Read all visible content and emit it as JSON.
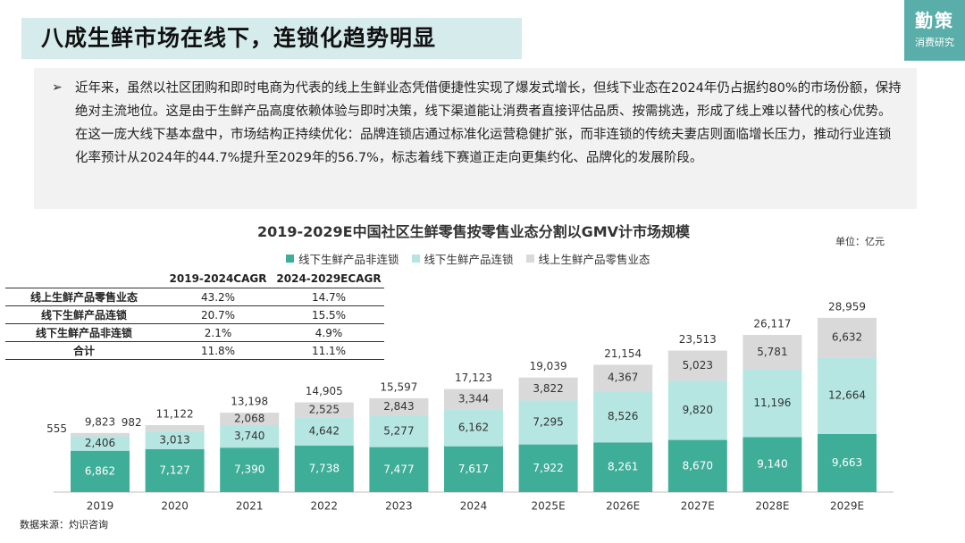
{
  "header": {
    "title": "八成生鲜市场在线下，连锁化趋势明显",
    "brand_main": "勤策",
    "brand_sub": "消费研究"
  },
  "intro": {
    "bullet": "➢",
    "text": "近年来，虽然以社区团购和即时电商为代表的线上生鲜业态凭借便捷性实现了爆发式增长，但线下业态在2024年仍占据约80%的市场份额，保持绝对主流地位。这是由于生鲜产品高度依赖体验与即时决策，线下渠道能让消费者直接评估品质、按需挑选，形成了线上难以替代的核心优势。在这一庞大线下基本盘中，市场结构正持续优化：品牌连锁店通过标准化运营稳健扩张，而非连锁的传统夫妻店则面临增长压力，推动行业连锁化率预计从2024年的44.7%提升至2029年的56.7%，标志着线下赛道正走向更集约化、品牌化的发展阶段。"
  },
  "cagr_table": {
    "headers": [
      "",
      "2019-2024CAGR",
      "2024-2029ECAGR"
    ],
    "rows": [
      [
        "线上生鲜产品零售业态",
        "43.2%",
        "14.7%"
      ],
      [
        "线下生鲜产品连锁",
        "20.7%",
        "15.5%"
      ],
      [
        "线下生鲜产品非连锁",
        "2.1%",
        "4.9%"
      ],
      [
        "合计",
        "11.8%",
        "11.1%"
      ]
    ]
  },
  "source": "数据来源：灼识咨询",
  "chart_data": {
    "type": "bar",
    "stacked": true,
    "title": "2019-2029E中国社区生鲜零售按零售业态分割以GMV计市场规模",
    "unit": "单位：亿元",
    "legend_position": "top",
    "categories": [
      "2019",
      "2020",
      "2021",
      "2022",
      "2023",
      "2024",
      "2025E",
      "2026E",
      "2027E",
      "2028E",
      "2029E"
    ],
    "series": [
      {
        "name": "线下生鲜产品非连锁",
        "color": "#3fae98",
        "values": [
          6862,
          7127,
          7390,
          7738,
          7477,
          7617,
          7922,
          8261,
          8670,
          9140,
          9663
        ]
      },
      {
        "name": "线下生鲜产品连锁",
        "color": "#b5e6e2",
        "values": [
          2406,
          3013,
          3740,
          4642,
          5277,
          6162,
          7295,
          8526,
          9820,
          11196,
          12664
        ]
      },
      {
        "name": "线上生鲜产品零售业态",
        "color": "#d9d9d9",
        "values": [
          555,
          982,
          2068,
          2525,
          2843,
          3344,
          3822,
          4367,
          5023,
          5781,
          6632
        ]
      }
    ],
    "series_labels": [
      [
        "6,862",
        "7,127",
        "7,390",
        "7,738",
        "7,477",
        "7,617",
        "7,922",
        "8,261",
        "8,670",
        "9,140",
        "9,663"
      ],
      [
        "2,406",
        "3,013",
        "3,740",
        "4,642",
        "5,277",
        "6,162",
        "7,295",
        "8,526",
        "9,820",
        "11,196",
        "12,664"
      ],
      [
        "555",
        "982",
        "2,068",
        "2,525",
        "2,843",
        "3,344",
        "3,822",
        "4,367",
        "5,023",
        "5,781",
        "6,632"
      ]
    ],
    "totals": [
      9823,
      11122,
      13198,
      14905,
      15597,
      17123,
      19039,
      21154,
      23513,
      26117,
      28959
    ],
    "total_labels": [
      "9,823",
      "11,122",
      "13,198",
      "14,905",
      "15,597",
      "17,123",
      "19,039",
      "21,154",
      "23,513",
      "26,117",
      "28,959"
    ],
    "ylim": [
      0,
      30000
    ],
    "grid": false
  }
}
